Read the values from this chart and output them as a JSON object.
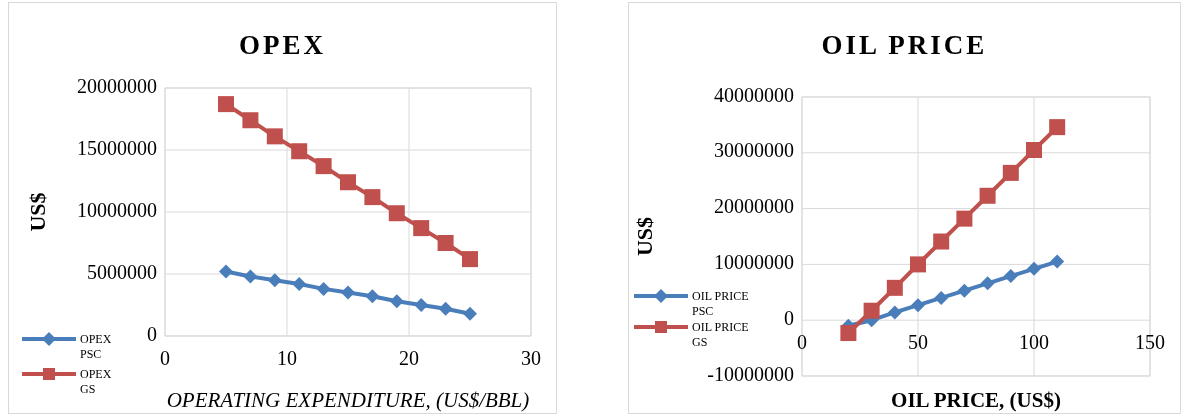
{
  "chart_data": [
    {
      "type": "line",
      "title": "OPEX",
      "xlabel": "OPERATING EXPENDITURE, (US$/BBL)",
      "ylabel": "US$",
      "x": [
        5,
        7,
        9,
        11,
        13,
        15,
        17,
        19,
        21,
        23,
        25
      ],
      "xlim": [
        0,
        30
      ],
      "xticks": [
        0,
        10,
        20,
        30
      ],
      "ylim": [
        0,
        20000000
      ],
      "yticks": [
        0,
        5000000,
        10000000,
        15000000,
        20000000
      ],
      "grid": true,
      "legend": "bottom left",
      "series": [
        {
          "name": "OPEX PSC",
          "color": "#4a7ebb",
          "marker": "diamond",
          "values": [
            5200000,
            4800000,
            4500000,
            4200000,
            3800000,
            3500000,
            3200000,
            2800000,
            2500000,
            2200000,
            1800000
          ]
        },
        {
          "name": "OPEX GS",
          "color": "#c0504d",
          "marker": "square",
          "values": [
            18700000,
            17400000,
            16100000,
            14900000,
            13700000,
            12400000,
            11200000,
            9900000,
            8700000,
            7500000,
            6200000
          ]
        }
      ]
    },
    {
      "type": "line",
      "title": "OIL PRICE",
      "xlabel": "OIL PRICE, (US$)",
      "ylabel": "US$",
      "x": [
        20,
        30,
        40,
        50,
        60,
        70,
        80,
        90,
        100,
        110
      ],
      "xlim": [
        0,
        150
      ],
      "xticks": [
        0,
        50,
        100,
        150
      ],
      "ylim": [
        -10000000,
        40000000
      ],
      "yticks": [
        -10000000,
        0,
        10000000,
        20000000,
        30000000,
        40000000
      ],
      "grid": true,
      "legend": "bottom left",
      "series": [
        {
          "name": "OIL PRICE PSC",
          "color": "#4a7ebb",
          "marker": "diamond",
          "values": [
            -1000000,
            0,
            1400000,
            2700000,
            4000000,
            5300000,
            6600000,
            7900000,
            9200000,
            10500000
          ]
        },
        {
          "name": "OIL PRICE GS",
          "color": "#c0504d",
          "marker": "square",
          "values": [
            -2300000,
            1700000,
            5800000,
            10000000,
            14100000,
            18200000,
            22300000,
            26400000,
            30500000,
            34600000
          ]
        }
      ]
    }
  ]
}
